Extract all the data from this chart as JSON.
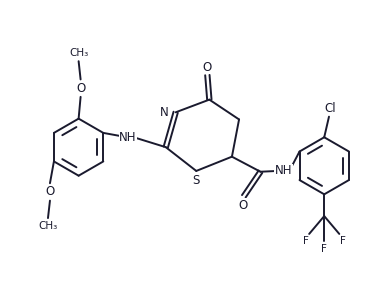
{
  "bg_color": "#ffffff",
  "line_color": "#1a1a2e",
  "line_width": 1.4,
  "font_size": 8.5,
  "figsize": [
    3.87,
    2.88
  ],
  "dpi": 100,
  "xlim": [
    0,
    9.5
  ],
  "ylim": [
    0,
    7.2
  ]
}
